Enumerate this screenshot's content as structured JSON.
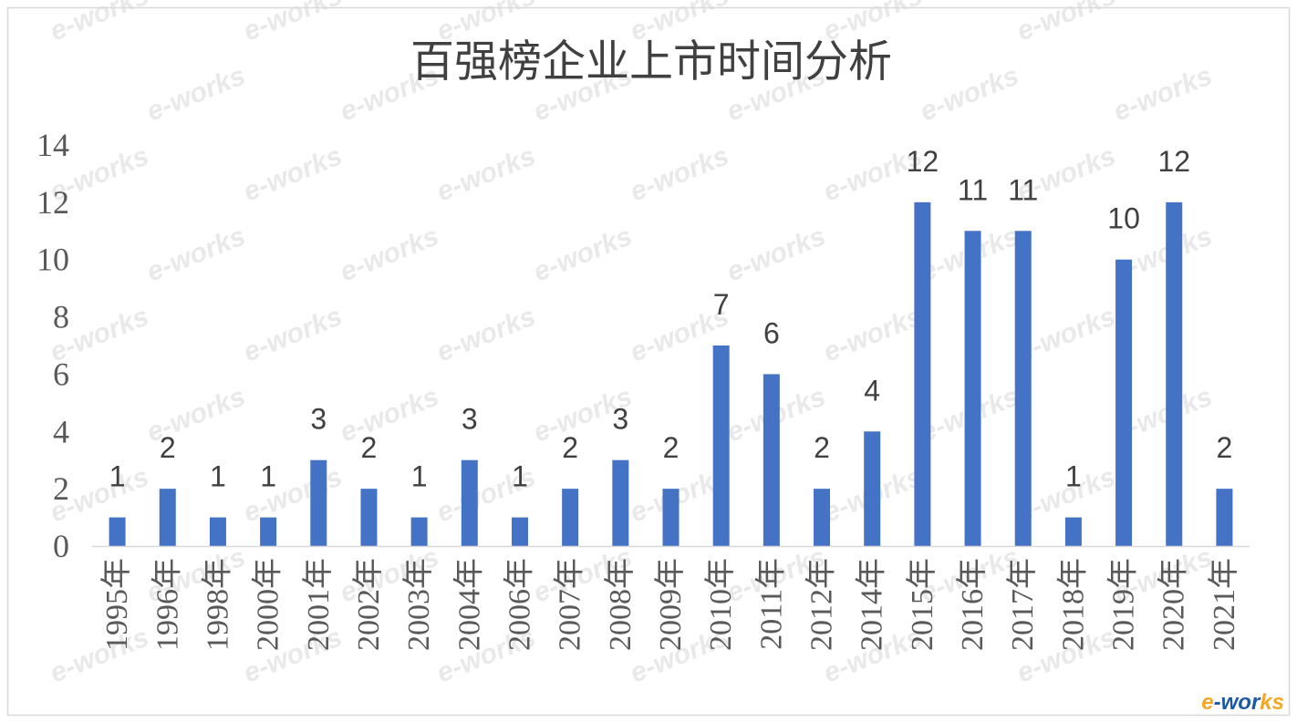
{
  "chart_data": {
    "type": "bar",
    "title": "百强榜企业上市时间分析",
    "xlabel": "",
    "ylabel": "",
    "categories": [
      "1995年",
      "1996年",
      "1998年",
      "2000年",
      "2001年",
      "2002年",
      "2003年",
      "2004年",
      "2006年",
      "2007年",
      "2008年",
      "2009年",
      "2010年",
      "2011年",
      "2012年",
      "2014年",
      "2015年",
      "2016年",
      "2017年",
      "2018年",
      "2019年",
      "2020年",
      "2021年"
    ],
    "values": [
      1,
      2,
      1,
      1,
      3,
      2,
      1,
      3,
      1,
      2,
      3,
      2,
      7,
      6,
      2,
      4,
      12,
      11,
      11,
      1,
      10,
      12,
      2
    ],
    "ylim": [
      0,
      14
    ],
    "yticks": [
      0,
      2,
      4,
      6,
      8,
      10,
      12,
      14
    ],
    "grid": false,
    "data_labels": true,
    "bar_color": "#4472C4",
    "axis_color": "#D9D9D9"
  },
  "watermark": "e-works",
  "logo": {
    "parts": [
      {
        "text": "e",
        "color": "#F5A623"
      },
      {
        "text": "-wor",
        "color": "#1C5AA6"
      },
      {
        "text": "ks",
        "color": "#F5A623"
      }
    ]
  }
}
